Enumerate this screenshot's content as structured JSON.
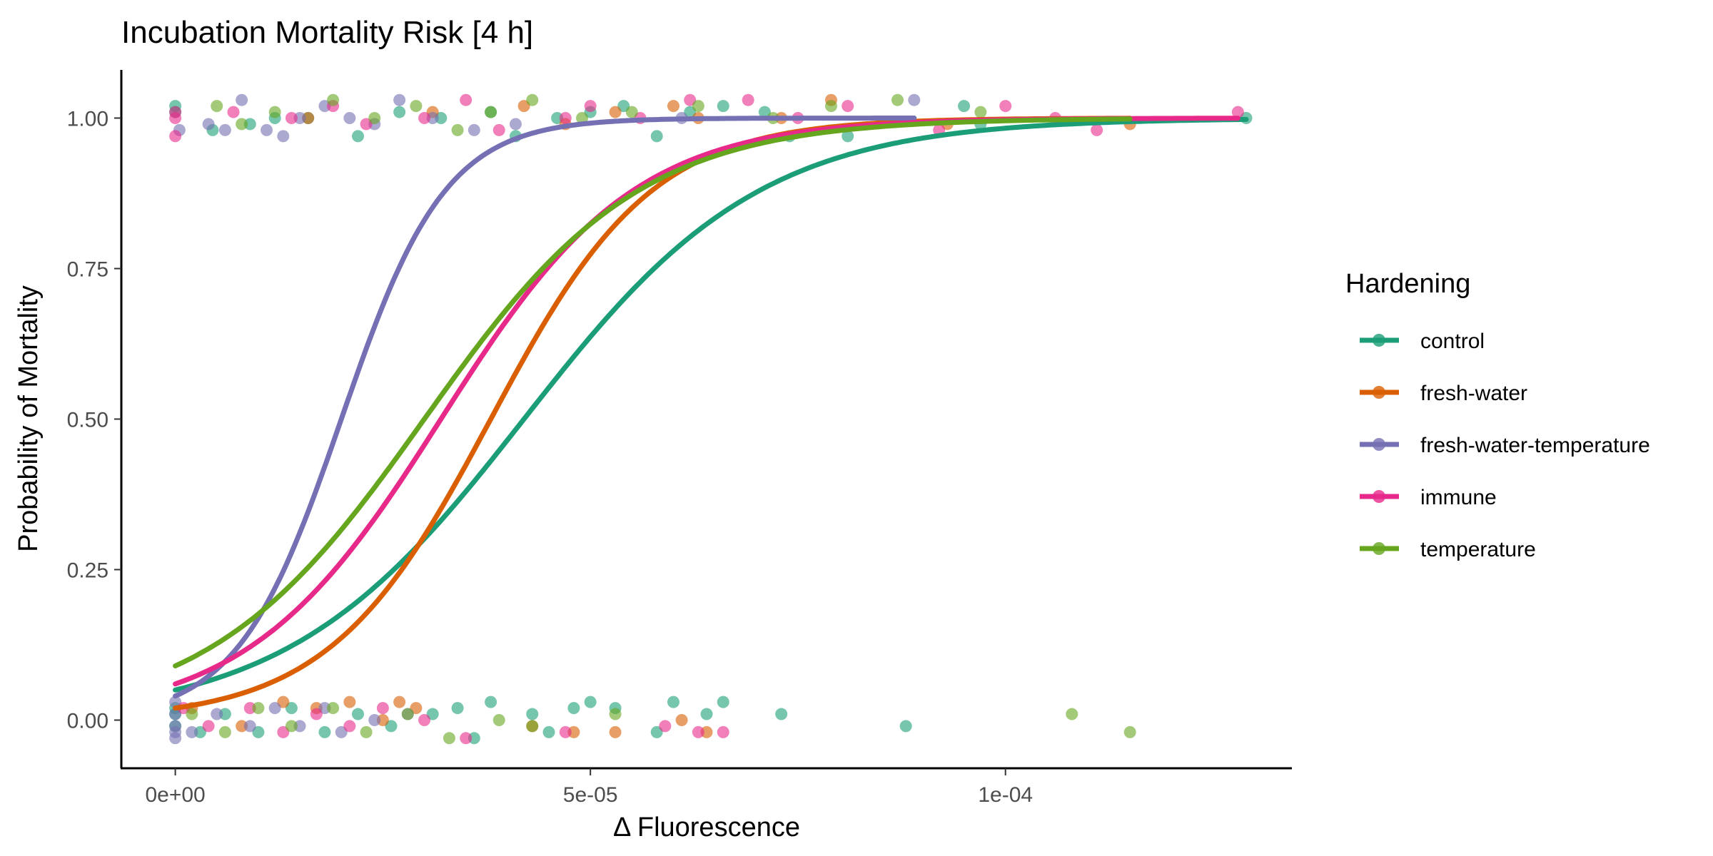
{
  "chart_data": {
    "type": "scatter",
    "title": "Incubation Mortality Risk [4 h]",
    "xlabel": "Δ Fluorescence",
    "ylabel": "Probability of Mortality",
    "xlim": [
      -6.5e-06,
      0.0001345
    ],
    "ylim": [
      -0.08,
      1.08
    ],
    "x_ticks": [
      {
        "value": 0,
        "label": "0e+00"
      },
      {
        "value": 5e-05,
        "label": "5e-05"
      },
      {
        "value": 0.0001,
        "label": "1e-04"
      }
    ],
    "y_ticks": [
      {
        "value": 0,
        "label": "0.00"
      },
      {
        "value": 0.25,
        "label": "0.25"
      },
      {
        "value": 0.5,
        "label": "0.50"
      },
      {
        "value": 0.75,
        "label": "0.75"
      },
      {
        "value": 1,
        "label": "1.00"
      }
    ],
    "grid": false,
    "legend": {
      "title": "Hardening",
      "position": "right"
    },
    "series": [
      {
        "name": "control",
        "color": "#1B9E77",
        "curve": {
          "p0": 0.05,
          "p50": 4.2e-05,
          "xmax": 0.000129
        },
        "points": [
          [
            0,
            1.01
          ],
          [
            0,
            1.02
          ],
          [
            4.5e-06,
            0.98
          ],
          [
            9e-06,
            0.99
          ],
          [
            1.2e-05,
            1.0
          ],
          [
            1.6e-05,
            1.0
          ],
          [
            2.2e-05,
            0.97
          ],
          [
            2.7e-05,
            1.01
          ],
          [
            3.2e-05,
            1.0
          ],
          [
            3.8e-05,
            1.01
          ],
          [
            4.1e-05,
            0.97
          ],
          [
            4.6e-05,
            1.0
          ],
          [
            5e-05,
            1.01
          ],
          [
            5.4e-05,
            1.02
          ],
          [
            5.8e-05,
            0.97
          ],
          [
            6.2e-05,
            1.01
          ],
          [
            6.6e-05,
            1.02
          ],
          [
            7.1e-05,
            1.01
          ],
          [
            7.4e-05,
            0.97
          ],
          [
            8.1e-05,
            0.97
          ],
          [
            9.5e-05,
            1.02
          ],
          [
            9.7e-05,
            0.99
          ],
          [
            0.000129,
            1.0
          ],
          [
            0,
            0.02
          ],
          [
            0,
            -0.01
          ],
          [
            0,
            0.01
          ],
          [
            3e-06,
            -0.02
          ],
          [
            6e-06,
            0.01
          ],
          [
            1e-05,
            -0.02
          ],
          [
            1.4e-05,
            0.02
          ],
          [
            1.8e-05,
            -0.02
          ],
          [
            2.2e-05,
            0.01
          ],
          [
            2.6e-05,
            -0.01
          ],
          [
            3.1e-05,
            0.01
          ],
          [
            3.4e-05,
            0.02
          ],
          [
            3.6e-05,
            -0.03
          ],
          [
            3.8e-05,
            0.03
          ],
          [
            4.3e-05,
            0.01
          ],
          [
            4.5e-05,
            -0.02
          ],
          [
            4.8e-05,
            0.02
          ],
          [
            5e-05,
            0.03
          ],
          [
            5.3e-05,
            0.02
          ],
          [
            5.8e-05,
            -0.02
          ],
          [
            6e-05,
            0.03
          ],
          [
            6.4e-05,
            0.01
          ],
          [
            6.6e-05,
            0.03
          ],
          [
            7.3e-05,
            0.01
          ],
          [
            8.8e-05,
            -0.01
          ]
        ]
      },
      {
        "name": "fresh-water",
        "color": "#D95F02",
        "curve": {
          "p0": 0.02,
          "p50": 3.8e-05,
          "xmax": 0.000115
        },
        "points": [
          [
            1.6e-05,
            1.0
          ],
          [
            3.1e-05,
            1.01
          ],
          [
            4.2e-05,
            1.02
          ],
          [
            4.7e-05,
            0.99
          ],
          [
            5.3e-05,
            1.01
          ],
          [
            6e-05,
            1.02
          ],
          [
            6.3e-05,
            1.0
          ],
          [
            7.3e-05,
            1.0
          ],
          [
            7.9e-05,
            1.03
          ],
          [
            9.3e-05,
            0.99
          ],
          [
            0.000115,
            0.99
          ],
          [
            2e-06,
            0.02
          ],
          [
            8e-06,
            -0.01
          ],
          [
            1.3e-05,
            0.03
          ],
          [
            1.7e-05,
            0.02
          ],
          [
            2.1e-05,
            0.03
          ],
          [
            2.5e-05,
            0.0
          ],
          [
            2.7e-05,
            0.03
          ],
          [
            2.9e-05,
            0.02
          ],
          [
            4.3e-05,
            -0.01
          ],
          [
            4.8e-05,
            -0.02
          ],
          [
            5.3e-05,
            -0.02
          ],
          [
            6.1e-05,
            0.0
          ],
          [
            6.4e-05,
            -0.02
          ]
        ]
      },
      {
        "name": "fresh-water-temperature",
        "color": "#7570B3",
        "curve": {
          "p0": 0.04,
          "p50": 2e-05,
          "xmax": 8.9e-05
        },
        "points": [
          [
            5e-07,
            0.98
          ],
          [
            4e-06,
            0.99
          ],
          [
            6e-06,
            0.98
          ],
          [
            8e-06,
            1.03
          ],
          [
            1.1e-05,
            0.98
          ],
          [
            1.3e-05,
            0.97
          ],
          [
            1.5e-05,
            1.0
          ],
          [
            1.8e-05,
            1.02
          ],
          [
            2.1e-05,
            1.0
          ],
          [
            2.4e-05,
            0.99
          ],
          [
            2.7e-05,
            1.03
          ],
          [
            3.1e-05,
            1.0
          ],
          [
            3.6e-05,
            0.98
          ],
          [
            4.1e-05,
            0.99
          ],
          [
            6.1e-05,
            1.0
          ],
          [
            8.9e-05,
            1.03
          ],
          [
            0,
            0.03
          ],
          [
            0,
            0.01
          ],
          [
            0,
            -0.01
          ],
          [
            0,
            -0.02
          ],
          [
            0,
            -0.03
          ],
          [
            2e-06,
            -0.02
          ],
          [
            5e-06,
            0.01
          ],
          [
            9e-06,
            -0.01
          ],
          [
            1.2e-05,
            0.02
          ],
          [
            1.5e-05,
            -0.01
          ],
          [
            1.8e-05,
            0.02
          ],
          [
            2e-05,
            -0.02
          ],
          [
            2.4e-05,
            0.0
          ],
          [
            2.8e-05,
            0.01
          ]
        ]
      },
      {
        "name": "immune",
        "color": "#E7298A",
        "curve": {
          "p0": 0.06,
          "p50": 3.2e-05,
          "xmax": 0.000128
        },
        "points": [
          [
            0,
            1.0
          ],
          [
            0,
            0.97
          ],
          [
            0,
            1.01
          ],
          [
            7e-06,
            1.01
          ],
          [
            1.4e-05,
            1.0
          ],
          [
            1.9e-05,
            1.02
          ],
          [
            2.3e-05,
            0.99
          ],
          [
            3e-05,
            1.0
          ],
          [
            3.5e-05,
            1.03
          ],
          [
            3.9e-05,
            0.98
          ],
          [
            4.7e-05,
            1.0
          ],
          [
            5e-05,
            1.02
          ],
          [
            5.6e-05,
            1.0
          ],
          [
            6.2e-05,
            1.03
          ],
          [
            6.9e-05,
            1.03
          ],
          [
            7.5e-05,
            1.0
          ],
          [
            8.1e-05,
            1.02
          ],
          [
            9.2e-05,
            0.98
          ],
          [
            0.0001,
            1.02
          ],
          [
            0.000106,
            1.0
          ],
          [
            0.000111,
            0.98
          ],
          [
            0.000128,
            1.01
          ],
          [
            1e-06,
            0.02
          ],
          [
            4e-06,
            -0.01
          ],
          [
            9e-06,
            0.02
          ],
          [
            1.3e-05,
            -0.02
          ],
          [
            1.7e-05,
            0.01
          ],
          [
            2.1e-05,
            -0.01
          ],
          [
            2.5e-05,
            0.02
          ],
          [
            3e-05,
            0.0
          ],
          [
            3.5e-05,
            -0.03
          ],
          [
            4.7e-05,
            -0.02
          ],
          [
            5.9e-05,
            -0.01
          ],
          [
            6.3e-05,
            -0.02
          ],
          [
            6.6e-05,
            -0.02
          ]
        ]
      },
      {
        "name": "temperature",
        "color": "#66A61E",
        "curve": {
          "p0": 0.09,
          "p50": 3e-05,
          "xmax": 0.000115
        },
        "points": [
          [
            5e-06,
            1.02
          ],
          [
            8e-06,
            0.99
          ],
          [
            1.2e-05,
            1.01
          ],
          [
            1.9e-05,
            1.03
          ],
          [
            2.4e-05,
            1.0
          ],
          [
            2.9e-05,
            1.02
          ],
          [
            3.4e-05,
            0.98
          ],
          [
            3.8e-05,
            1.01
          ],
          [
            4.3e-05,
            1.03
          ],
          [
            4.9e-05,
            1.0
          ],
          [
            5.5e-05,
            1.01
          ],
          [
            6.3e-05,
            1.02
          ],
          [
            7.2e-05,
            1.0
          ],
          [
            7.9e-05,
            1.02
          ],
          [
            8.7e-05,
            1.03
          ],
          [
            9.7e-05,
            1.01
          ],
          [
            2e-06,
            0.01
          ],
          [
            6e-06,
            -0.02
          ],
          [
            1e-05,
            0.02
          ],
          [
            1.4e-05,
            -0.01
          ],
          [
            1.9e-05,
            0.02
          ],
          [
            2.3e-05,
            -0.02
          ],
          [
            2.8e-05,
            0.01
          ],
          [
            3.3e-05,
            -0.03
          ],
          [
            3.9e-05,
            0.0
          ],
          [
            4.3e-05,
            -0.01
          ],
          [
            5.3e-05,
            0.01
          ],
          [
            0.000108,
            0.01
          ],
          [
            0.000115,
            -0.02
          ]
        ]
      }
    ]
  }
}
